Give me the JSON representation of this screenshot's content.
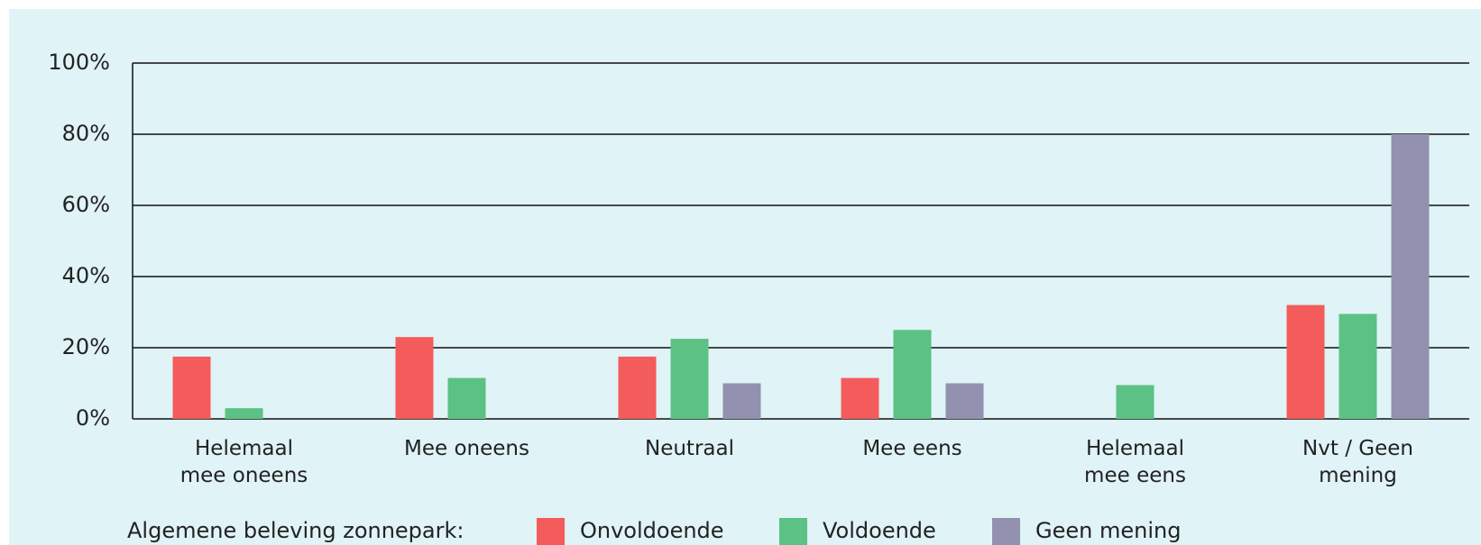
{
  "chart_data": {
    "type": "bar",
    "categories": [
      "Helemaal\nmee oneens",
      "Mee oneens",
      "Neutraal",
      "Mee eens",
      "Helemaal\nmee eens",
      "Nvt / Geen\nmening"
    ],
    "series": [
      {
        "name": "Onvoldoende",
        "color": "#f45b5b",
        "values": [
          17.5,
          23,
          17.5,
          11.5,
          0,
          32
        ]
      },
      {
        "name": "Voldoende",
        "color": "#5bc184",
        "values": [
          3,
          11.5,
          22.5,
          25,
          9.5,
          29.5
        ]
      },
      {
        "name": "Geen mening",
        "color": "#9291b0",
        "values": [
          0,
          0,
          10,
          10,
          0,
          80
        ]
      }
    ],
    "legend_title": "Algemene beleving zonnepark:",
    "ylim": [
      0,
      100
    ],
    "yticks": [
      {
        "value": 0,
        "label": "0%"
      },
      {
        "value": 20,
        "label": "20%"
      },
      {
        "value": 40,
        "label": "40%"
      },
      {
        "value": 60,
        "label": "60%"
      },
      {
        "value": 80,
        "label": "80%"
      },
      {
        "value": 100,
        "label": "100%"
      }
    ],
    "grid": true
  }
}
